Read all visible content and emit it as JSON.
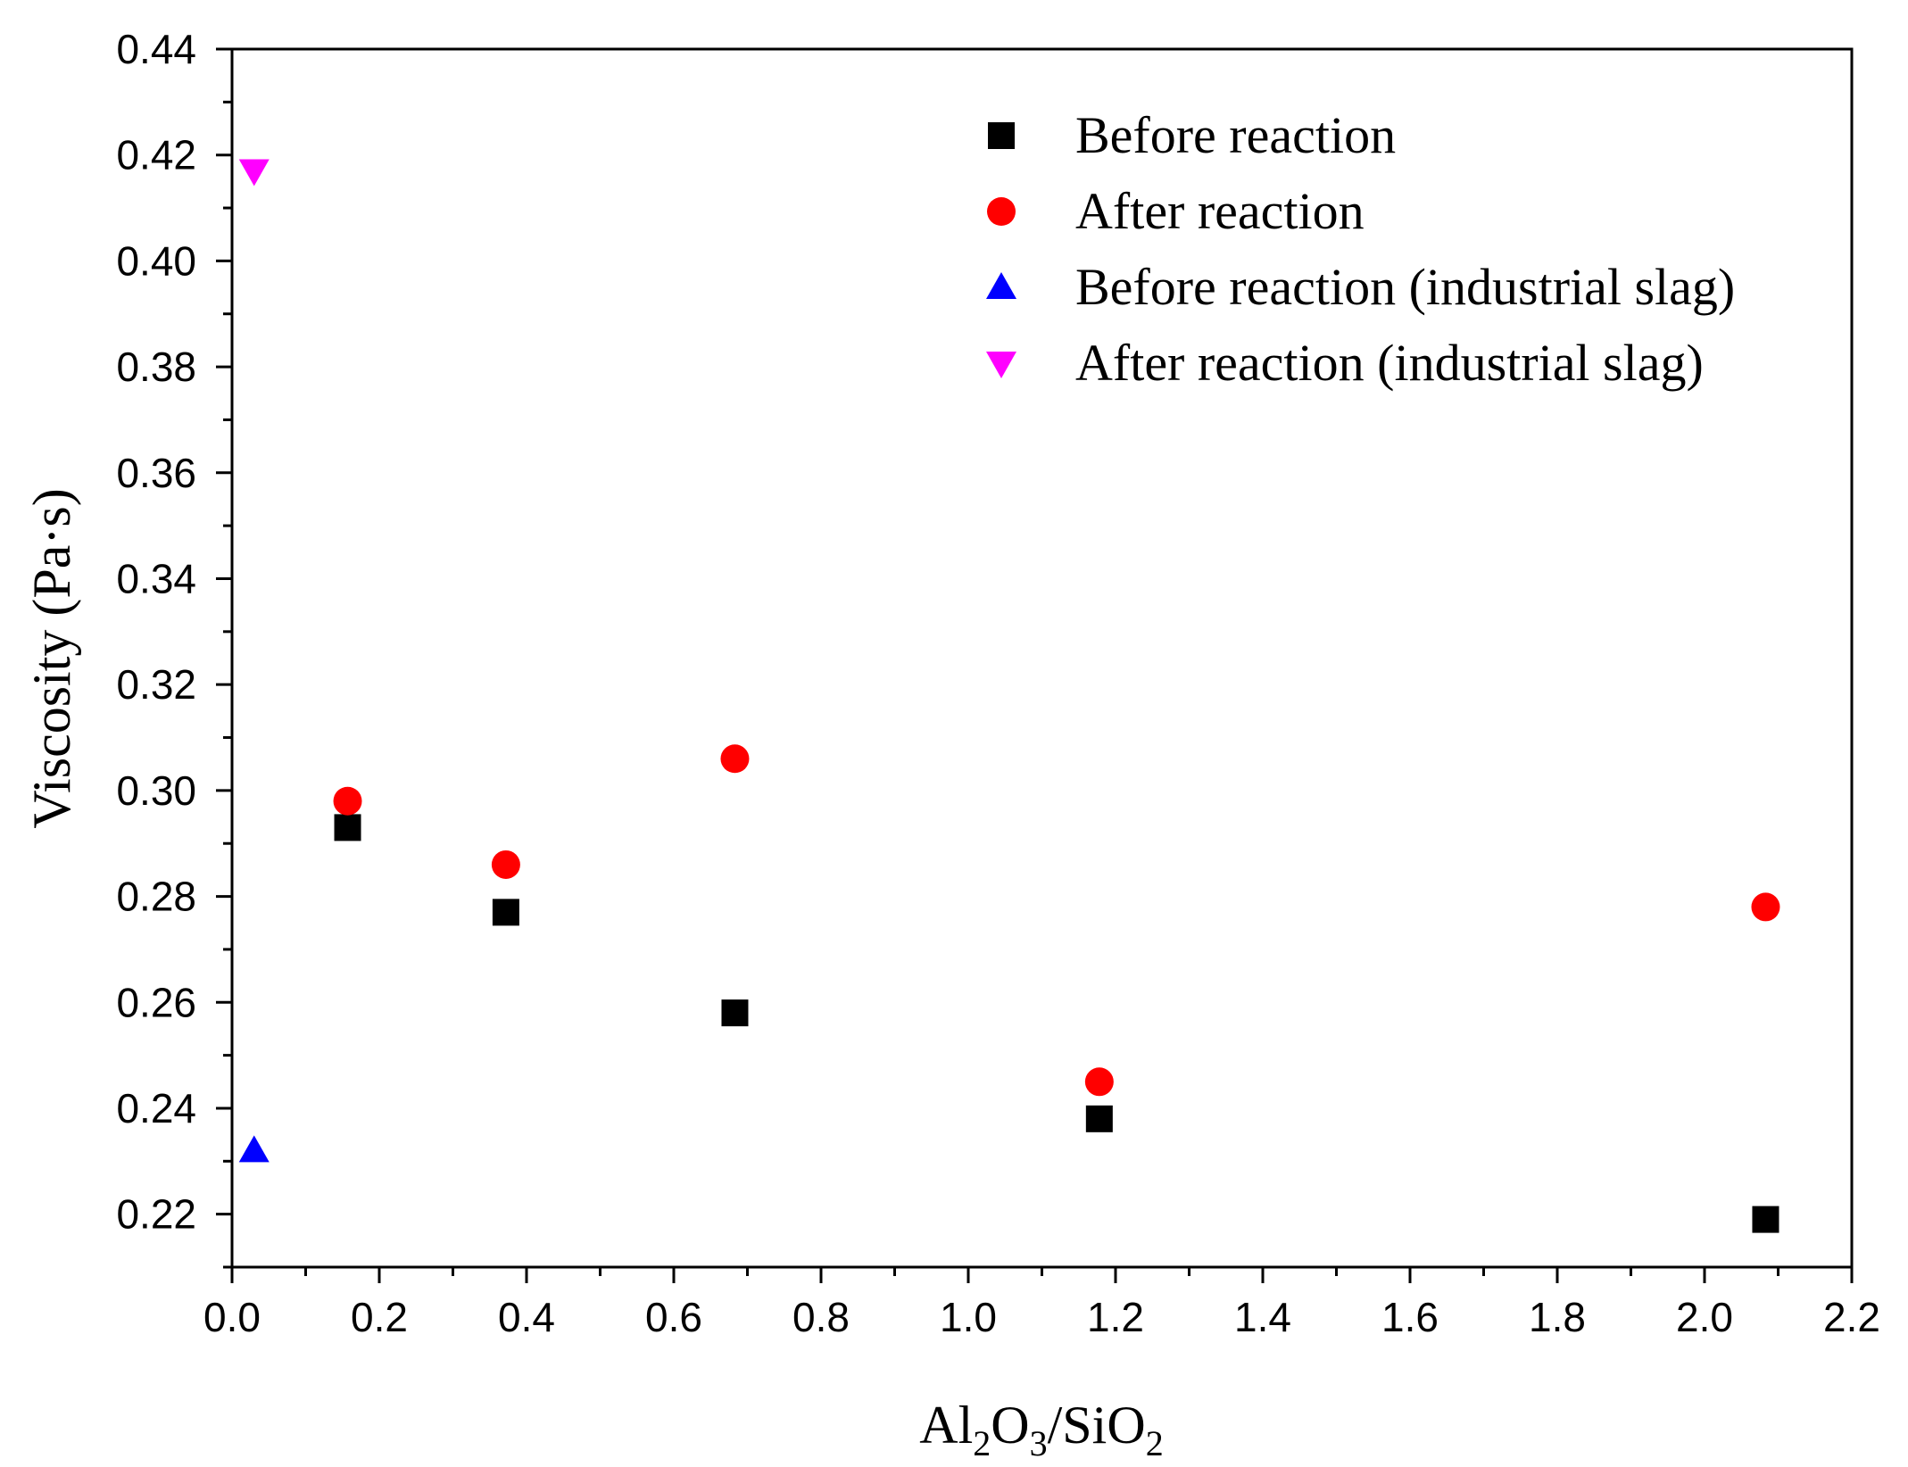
{
  "chart_data": {
    "type": "scatter",
    "title": "",
    "xlabel": {
      "main": "Al",
      "sub1": "2",
      "mid1": "O",
      "sub2": "3",
      "mid2": "/SiO",
      "sub3": "2"
    },
    "ylabel": "Viscosity (Pa·s)",
    "xlim": [
      0,
      2.2
    ],
    "ylim": [
      0.21,
      0.44
    ],
    "x_ticks": [
      "0.0",
      "0.2",
      "0.4",
      "0.6",
      "0.8",
      "1.0",
      "1.2",
      "1.4",
      "1.6",
      "1.8",
      "2.0",
      "2.2"
    ],
    "y_ticks": [
      "0.22",
      "0.24",
      "0.26",
      "0.28",
      "0.30",
      "0.32",
      "0.34",
      "0.36",
      "0.38",
      "0.40",
      "0.42",
      "0.44"
    ],
    "grid": false,
    "legend_position": "top-right",
    "series": [
      {
        "name": "Before reaction",
        "marker": "square",
        "color": "#000000",
        "x": [
          0.157,
          0.372,
          0.683,
          1.178,
          2.083
        ],
        "y": [
          0.293,
          0.277,
          0.258,
          0.238,
          0.219
        ]
      },
      {
        "name": "After reaction",
        "marker": "circle",
        "color": "#ff0000",
        "x": [
          0.157,
          0.372,
          0.683,
          1.178,
          2.083
        ],
        "y": [
          0.298,
          0.286,
          0.306,
          0.245,
          0.278
        ]
      },
      {
        "name": "Before reaction (industrial slag)",
        "marker": "triangle-up",
        "color": "#0000ff",
        "x": [
          0.03
        ],
        "y": [
          0.232
        ]
      },
      {
        "name": "After reaction (industrial slag)",
        "marker": "triangle-down",
        "color": "#ff00ff",
        "x": [
          0.03
        ],
        "y": [
          0.417
        ]
      }
    ]
  }
}
